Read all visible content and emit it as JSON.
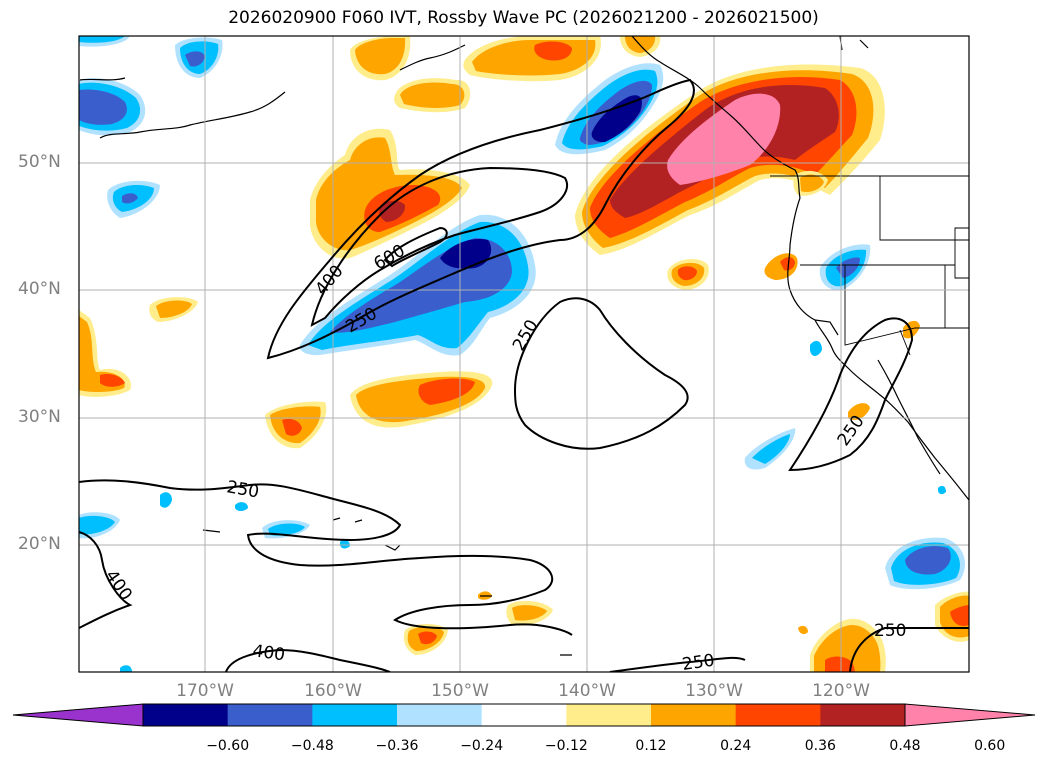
{
  "title": "2026020900 F060 IVT, Rossby Wave PC (2026021200 - 2026021500)",
  "lat_labels": [
    "50°N",
    "40°N",
    "30°N",
    "20°N"
  ],
  "lon_labels": [
    "170°W",
    "160°W",
    "150°W",
    "140°W",
    "130°W",
    "120°W"
  ],
  "contour_labels": [
    "600",
    "400",
    "250",
    "250",
    "250",
    "250",
    "400",
    "400",
    "250",
    "250"
  ],
  "colorbar": {
    "ticks": [
      "−0.60",
      "−0.48",
      "−0.36",
      "−0.24",
      "−0.12",
      "0.12",
      "0.24",
      "0.36",
      "0.48",
      "0.60"
    ],
    "colors": [
      "#9a32cd",
      "#00008b",
      "#3a5fcd",
      "#00bfff",
      "#b0e2ff",
      "#ffffff",
      "#ffec8b",
      "#ffa500",
      "#ff4500",
      "#b22222",
      "#ff82ab"
    ]
  }
}
